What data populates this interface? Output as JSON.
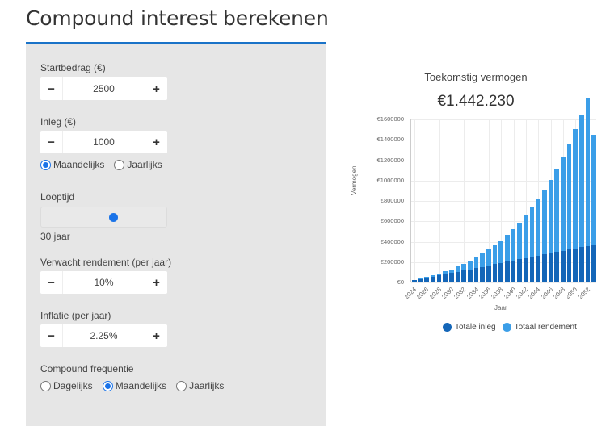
{
  "page": {
    "title": "Compound interest berekenen"
  },
  "form": {
    "startbedrag": {
      "label": "Startbedrag (€)",
      "value": "2500",
      "minus": "−",
      "plus": "+"
    },
    "inleg": {
      "label": "Inleg (€)",
      "value": "1000",
      "minus": "−",
      "plus": "+",
      "frequency_options": [
        {
          "label": "Maandelijks",
          "checked": true
        },
        {
          "label": "Jaarlijks",
          "checked": false
        }
      ]
    },
    "looptijd": {
      "label": "Looptijd",
      "value_label": "30 jaar",
      "value": 30
    },
    "rendement": {
      "label": "Verwacht rendement (per jaar)",
      "value": "10%",
      "minus": "−",
      "plus": "+"
    },
    "inflatie": {
      "label": "Inflatie (per jaar)",
      "value": "2.25%",
      "minus": "−",
      "plus": "+"
    },
    "compound": {
      "label": "Compound frequentie",
      "options": [
        {
          "label": "Dagelijks",
          "checked": false
        },
        {
          "label": "Maandelijks",
          "checked": true
        },
        {
          "label": "Jaarlijks",
          "checked": false
        }
      ]
    }
  },
  "result": {
    "title": "Toekomstig vermogen",
    "value": "€1.442.230"
  },
  "colors": {
    "accent": "#1a73c8",
    "totale_inleg": "#1466b8",
    "totaal_rendement": "#3b9ee8",
    "panel_bg": "#e6e6e6"
  },
  "chart_data": {
    "type": "bar",
    "stacked": true,
    "title": "Toekomstig vermogen",
    "xlabel": "Jaar",
    "ylabel": "Vermogen",
    "ylim": [
      0,
      1600000
    ],
    "yticks": [
      "€0",
      "€200000",
      "€400000",
      "€600000",
      "€800000",
      "€1000000",
      "€1200000",
      "€1400000",
      "€1600000"
    ],
    "xtick_labels": [
      "2024",
      "2026",
      "2028",
      "2030",
      "2032",
      "2034",
      "2036",
      "2038",
      "2040",
      "2042",
      "2044",
      "2046",
      "2048",
      "2050",
      "2052"
    ],
    "categories": [
      "2024",
      "2025",
      "2026",
      "2027",
      "2028",
      "2029",
      "2030",
      "2031",
      "2032",
      "2033",
      "2034",
      "2035",
      "2036",
      "2037",
      "2038",
      "2039",
      "2040",
      "2041",
      "2042",
      "2043",
      "2044",
      "2045",
      "2046",
      "2047",
      "2048",
      "2049",
      "2050",
      "2051",
      "2052",
      "2053"
    ],
    "series": [
      {
        "name": "Totale inleg",
        "values": [
          14500,
          26500,
          38500,
          50500,
          62500,
          74500,
          86500,
          98500,
          110500,
          122500,
          134500,
          146500,
          158500,
          170500,
          182500,
          194500,
          206500,
          218500,
          230500,
          242500,
          254500,
          266500,
          278500,
          290500,
          302500,
          314500,
          326500,
          338500,
          350500,
          362500
        ]
      },
      {
        "name": "Totaal rendement",
        "values": [
          500,
          2500,
          6000,
          11000,
          17500,
          25500,
          36000,
          48500,
          63500,
          81500,
          102500,
          127000,
          155000,
          187000,
          223500,
          264500,
          310500,
          362000,
          420000,
          484500,
          556000,
          635000,
          722000,
          818000,
          924000,
          1040000,
          1167000,
          1305000,
          1455000,
          1079730
        ]
      }
    ],
    "legend": [
      "Totale inleg",
      "Totaal rendement"
    ],
    "legend_position": "bottom",
    "grid": true
  }
}
